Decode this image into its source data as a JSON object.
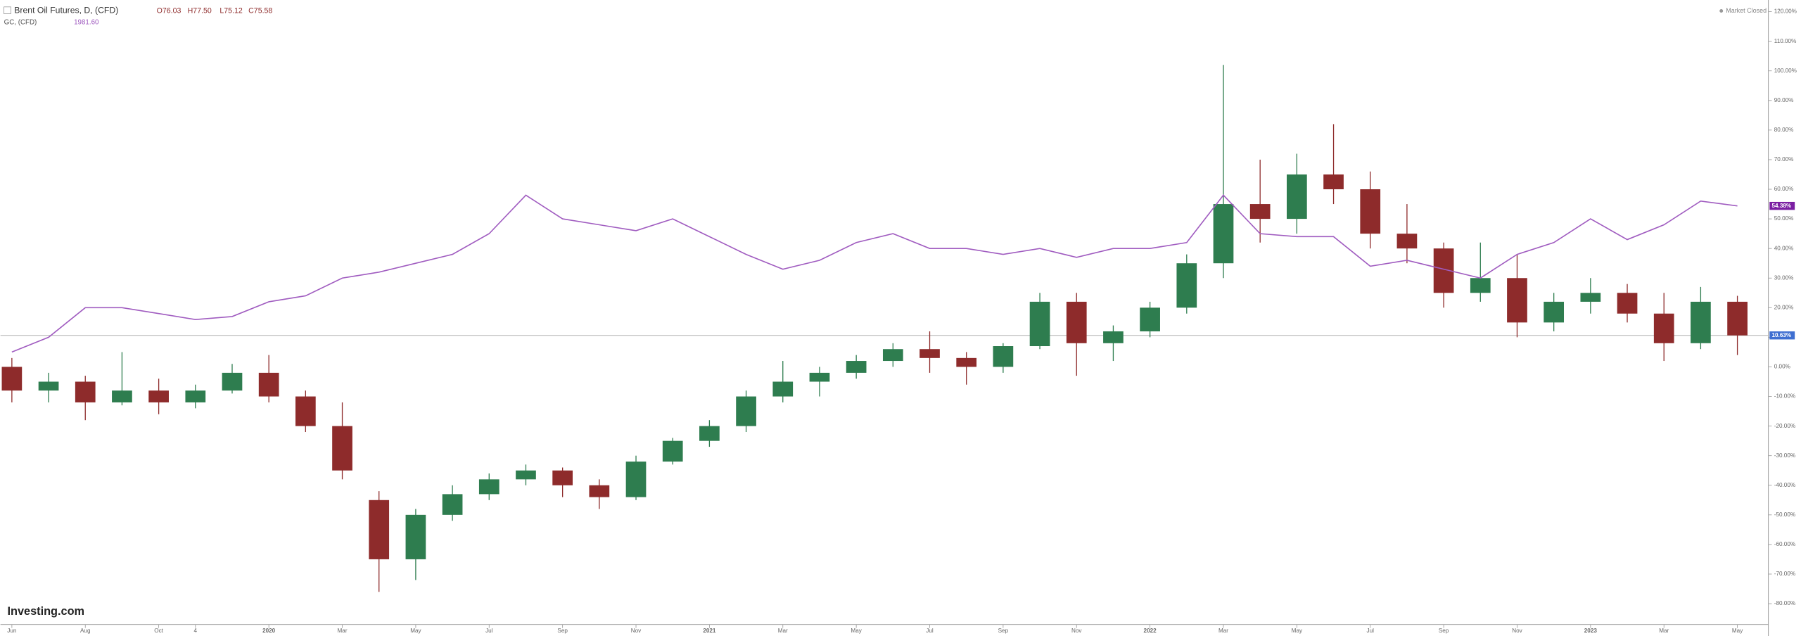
{
  "chart_data": {
    "type": "candlestick",
    "header": {
      "symbol": "Brent Oil Futures, D, (CFD)",
      "ohlc": [
        "O76.03",
        "H77.50",
        "L75.12",
        "C75.58"
      ],
      "compare_symbol": "GC, (CFD)",
      "compare_price": "1981.60",
      "status": "Market Closed",
      "logo": "Investing.com"
    },
    "x": [
      0,
      1,
      2,
      3,
      4,
      5,
      6,
      7,
      8,
      9,
      10,
      11,
      12,
      13,
      14,
      15,
      16,
      17,
      18,
      19,
      20,
      21,
      22,
      23,
      24,
      25,
      26,
      27,
      28,
      29,
      30,
      31,
      32,
      33,
      34,
      35,
      36,
      37,
      38,
      39,
      40,
      41,
      42,
      43,
      44,
      45,
      46,
      47
    ],
    "xlim": [
      -0.31,
      47.75
    ],
    "xticks": [
      {
        "value": 0,
        "label": "Jun"
      },
      {
        "value": 2,
        "label": "Aug"
      },
      {
        "value": 4,
        "label": "Oct"
      },
      {
        "value": 5,
        "label": "4"
      },
      {
        "value": 7,
        "label": "2020"
      },
      {
        "value": 9,
        "label": "Mar"
      },
      {
        "value": 11,
        "label": "May"
      },
      {
        "value": 13,
        "label": "Jul"
      },
      {
        "value": 15,
        "label": "Sep"
      },
      {
        "value": 17,
        "label": "Nov"
      },
      {
        "value": 19,
        "label": "2021"
      },
      {
        "value": 21,
        "label": "Mar"
      },
      {
        "value": 23,
        "label": "May"
      },
      {
        "value": 25,
        "label": "Jul"
      },
      {
        "value": 27,
        "label": "Sep"
      },
      {
        "value": 29,
        "label": "Nov"
      },
      {
        "value": 31,
        "label": "2022"
      },
      {
        "value": 33,
        "label": "Mar"
      },
      {
        "value": 35,
        "label": "May"
      },
      {
        "value": 37,
        "label": "Jul"
      },
      {
        "value": 39,
        "label": "Sep"
      },
      {
        "value": 41,
        "label": "Nov"
      },
      {
        "value": 43,
        "label": "2023"
      },
      {
        "value": 45,
        "label": "Mar"
      },
      {
        "value": 47,
        "label": "May"
      }
    ],
    "ylim": [
      -82,
      122
    ],
    "yticks": [
      {
        "value": -80,
        "label": "-80.00%"
      },
      {
        "value": -70,
        "label": "-70.00%"
      },
      {
        "value": -60,
        "label": "-60.00%"
      },
      {
        "value": -50,
        "label": "-50.00%"
      },
      {
        "value": -40,
        "label": "-40.00%"
      },
      {
        "value": -30,
        "label": "-30.00%"
      },
      {
        "value": -20,
        "label": "-20.00%"
      },
      {
        "value": -10,
        "label": "-10.00%"
      },
      {
        "value": 0,
        "label": "0.00%"
      },
      {
        "value": 10,
        "label": "10.00%"
      },
      {
        "value": 20,
        "label": "20.00%"
      },
      {
        "value": 30,
        "label": "30.00%"
      },
      {
        "value": 40,
        "label": "40.00%"
      },
      {
        "value": 50,
        "label": "50.00%"
      },
      {
        "value": 60,
        "label": "60.00%"
      },
      {
        "value": 70,
        "label": "70.00%"
      },
      {
        "value": 80,
        "label": "80.00%"
      },
      {
        "value": 90,
        "label": "90.00%"
      },
      {
        "value": 100,
        "label": "100.00%"
      },
      {
        "value": 110,
        "label": "110.00%"
      },
      {
        "value": 120,
        "label": "120.00%"
      }
    ],
    "grid": false,
    "candles": {
      "up_color": "#2e7d4f",
      "down_color": "#8e2b2b",
      "open": [
        0,
        -8,
        -5,
        -12,
        -8,
        -12,
        -8,
        -2,
        -10,
        -20,
        -45,
        -65,
        -50,
        -43,
        -38,
        -35,
        -40,
        -44,
        -32,
        -25,
        -20,
        -10,
        -5,
        -2,
        2,
        6,
        3,
        0,
        7,
        22,
        8,
        12,
        20,
        35,
        55,
        50,
        65,
        60,
        45,
        40,
        25,
        30,
        15,
        22,
        25,
        18,
        8,
        22
      ],
      "high": [
        3,
        -2,
        -3,
        5,
        -4,
        -6,
        1,
        4,
        -8,
        -12,
        -42,
        -48,
        -40,
        -36,
        -33,
        -34,
        -38,
        -30,
        -24,
        -18,
        -8,
        2,
        0,
        4,
        8,
        12,
        5,
        8,
        25,
        25,
        14,
        22,
        38,
        102,
        70,
        72,
        82,
        66,
        55,
        42,
        42,
        38,
        25,
        30,
        28,
        25,
        27,
        24
      ],
      "low": [
        -12,
        -12,
        -18,
        -13,
        -16,
        -14,
        -9,
        -12,
        -22,
        -38,
        -76,
        -72,
        -52,
        -45,
        -40,
        -44,
        -48,
        -45,
        -33,
        -27,
        -22,
        -12,
        -10,
        -4,
        0,
        -2,
        -6,
        -2,
        6,
        -3,
        2,
        10,
        18,
        30,
        42,
        45,
        55,
        40,
        35,
        20,
        22,
        10,
        12,
        18,
        15,
        2,
        6,
        4
      ],
      "close": [
        -8,
        -5,
        -12,
        -8,
        -12,
        -8,
        -2,
        -10,
        -20,
        -35,
        -65,
        -50,
        -43,
        -38,
        -35,
        -40,
        -44,
        -32,
        -25,
        -20,
        -10,
        -5,
        -2,
        2,
        6,
        3,
        0,
        7,
        22,
        8,
        12,
        20,
        35,
        55,
        50,
        65,
        60,
        45,
        40,
        25,
        30,
        15,
        22,
        25,
        18,
        8,
        22,
        10.63
      ]
    },
    "line": {
      "name": "GC, (CFD)",
      "color": "#a05cc0",
      "values": [
        5,
        10,
        20,
        20,
        18,
        16,
        17,
        22,
        24,
        30,
        32,
        35,
        38,
        45,
        58,
        50,
        48,
        46,
        50,
        44,
        38,
        33,
        36,
        42,
        45,
        40,
        40,
        38,
        40,
        37,
        40,
        40,
        42,
        58,
        45,
        44,
        44,
        34,
        36,
        33,
        30,
        38,
        42,
        50,
        43,
        48,
        56,
        54.38
      ]
    },
    "markers": [
      {
        "value": 54.38,
        "label": "54.38%",
        "color": "#7b1fa2"
      },
      {
        "value": 10.63,
        "label": "10.63%",
        "color": "#3f6fd1"
      }
    ]
  }
}
